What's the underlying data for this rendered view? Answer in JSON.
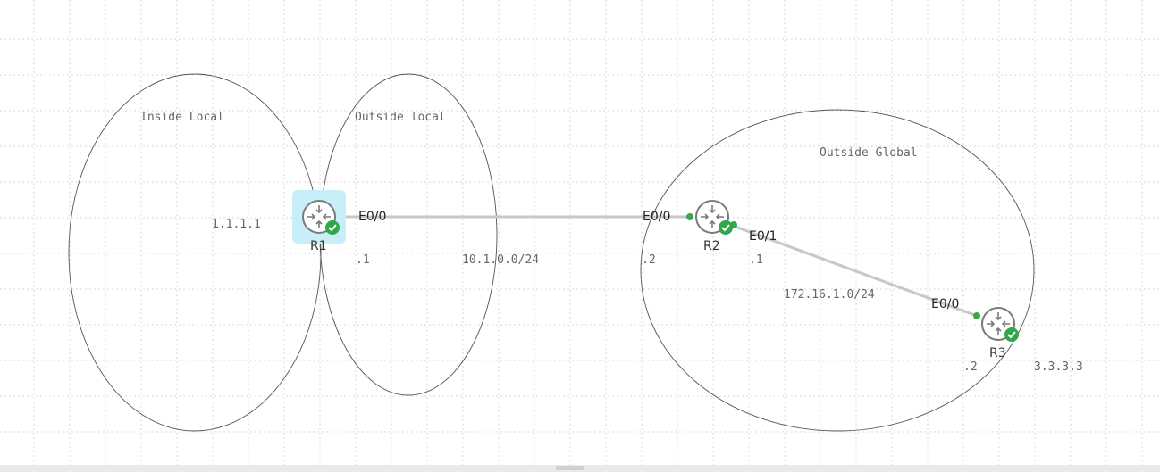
{
  "zones": [
    {
      "id": "inside-local",
      "label": "Inside Local"
    },
    {
      "id": "outside-local",
      "label": "Outside local"
    },
    {
      "id": "outside-global",
      "label": "Outside Global"
    }
  ],
  "routers": [
    {
      "id": "r1",
      "name": "R1",
      "selected": true,
      "status": "ok"
    },
    {
      "id": "r2",
      "name": "R2",
      "selected": false,
      "status": "ok"
    },
    {
      "id": "r3",
      "name": "R3",
      "selected": false,
      "status": "ok"
    }
  ],
  "links": [
    {
      "id": "r1-r2",
      "network": "10.1.0.0/24",
      "a_iface": "E0/0",
      "a_host": ".1",
      "b_iface": "E0/0",
      "b_host": ".2"
    },
    {
      "id": "r2-r3",
      "network": "172.16.1.0/24",
      "a_iface": "E0/1",
      "a_host": ".1",
      "b_iface": "E0/0",
      "b_host": ".2"
    }
  ],
  "addresses": {
    "r1_loopback": "1.1.1.1",
    "r3_loopback": "3.3.3.3"
  },
  "colors": {
    "status_ok": "#2ea84a",
    "selection": "#c8eef8",
    "link": "#c8c8c8"
  }
}
